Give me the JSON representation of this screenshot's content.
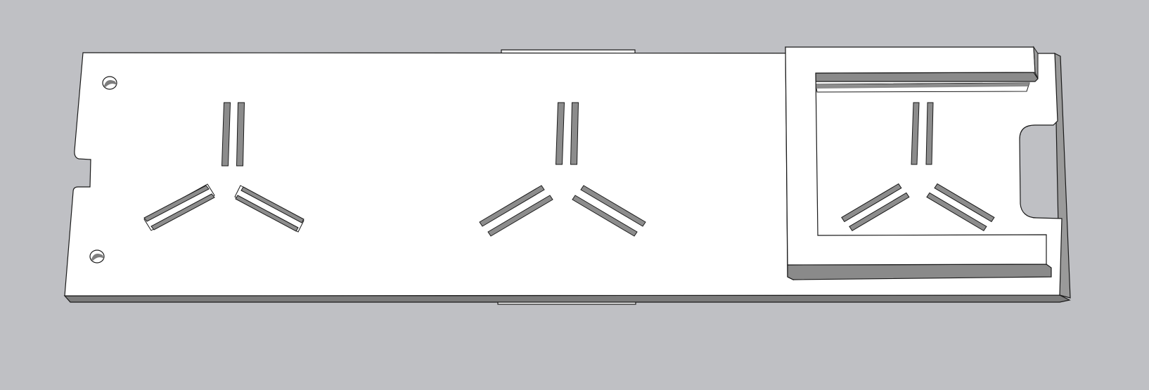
{
  "scene": {
    "background_color": "#bfc0c4",
    "face_color": "#ffffff",
    "side_color": "#8e8e8e",
    "edge_color": "#1a1a1a",
    "slot_dark": "#8c8c8c",
    "slot_light": "#d6d6d6"
  },
  "sections": [
    {
      "name": "left-slot-group"
    },
    {
      "name": "center-slot-group"
    },
    {
      "name": "right-slot-group"
    }
  ]
}
